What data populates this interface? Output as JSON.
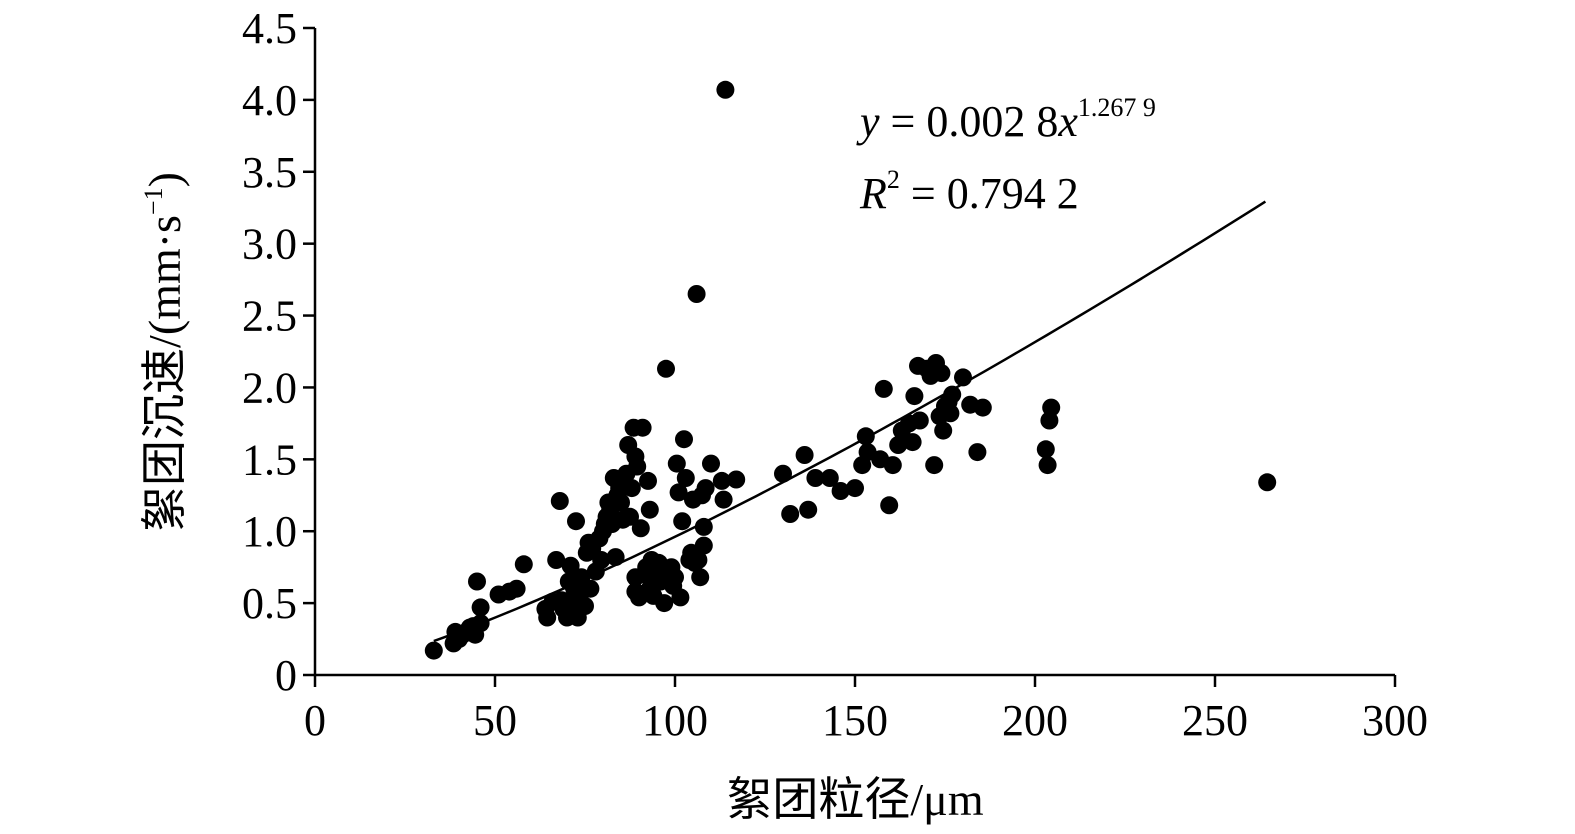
{
  "chart_data": {
    "type": "scatter",
    "xlabel": "絮团粒径/μm",
    "ylabel": "絮团沉速/(mm·s",
    "ylabel_unit_exp": "−1",
    "ylabel_close": ")",
    "xlim": [
      0,
      300
    ],
    "ylim": [
      0,
      4.5
    ],
    "x_ticks": [
      "0",
      "50",
      "100",
      "150",
      "200",
      "250",
      "300"
    ],
    "y_ticks": [
      "0",
      "0.5",
      "1.0",
      "1.5",
      "2.0",
      "2.5",
      "3.0",
      "3.5",
      "4.0",
      "4.5"
    ],
    "grid": false,
    "legend": "none",
    "marker_color": "#000000",
    "fit_color": "#000000",
    "equation": {
      "y_var": "y",
      "eq_text": " = 0.002 8",
      "x_var": "x",
      "exponent": "1.267 9",
      "r_var": "R",
      "r_sup": "2",
      "r_text": " = 0.794 2"
    },
    "fit": {
      "type": "power",
      "coefficient": 0.0028,
      "exponent": 1.2679,
      "x_range": [
        33,
        264
      ]
    },
    "points": [
      [
        33,
        0.17
      ],
      [
        38.5,
        0.22
      ],
      [
        39,
        0.3
      ],
      [
        40,
        0.25
      ],
      [
        41,
        0.28
      ],
      [
        42,
        0.3
      ],
      [
        43,
        0.33
      ],
      [
        44,
        0.34
      ],
      [
        44.5,
        0.28
      ],
      [
        45,
        0.65
      ],
      [
        46,
        0.36
      ],
      [
        46,
        0.47
      ],
      [
        51,
        0.56
      ],
      [
        54,
        0.58
      ],
      [
        56,
        0.6
      ],
      [
        58,
        0.77
      ],
      [
        64,
        0.46
      ],
      [
        64.5,
        0.4
      ],
      [
        66,
        0.51
      ],
      [
        67,
        0.8
      ],
      [
        68,
        1.21
      ],
      [
        68.5,
        0.52
      ],
      [
        69,
        0.46
      ],
      [
        70,
        0.4
      ],
      [
        70.5,
        0.65
      ],
      [
        71,
        0.76
      ],
      [
        71.5,
        0.5
      ],
      [
        72,
        0.6
      ],
      [
        72.5,
        1.07
      ],
      [
        73,
        0.4
      ],
      [
        73.5,
        0.55
      ],
      [
        74,
        0.68
      ],
      [
        75,
        0.48
      ],
      [
        75.5,
        0.85
      ],
      [
        76,
        0.92
      ],
      [
        76.5,
        0.6
      ],
      [
        77,
        0.88
      ],
      [
        78,
        0.72
      ],
      [
        79,
        0.95
      ],
      [
        79.5,
        0.8
      ],
      [
        80,
        1.0
      ],
      [
        80.5,
        1.05
      ],
      [
        81,
        1.1
      ],
      [
        81.5,
        1.2
      ],
      [
        82,
        1.15
      ],
      [
        82.5,
        1.05
      ],
      [
        83,
        1.37
      ],
      [
        83.5,
        0.82
      ],
      [
        84,
        1.25
      ],
      [
        84.5,
        1.3
      ],
      [
        85,
        1.2
      ],
      [
        85.5,
        1.08
      ],
      [
        86,
        1.35
      ],
      [
        86.5,
        1.4
      ],
      [
        87,
        1.6
      ],
      [
        87.5,
        1.1
      ],
      [
        88,
        1.3
      ],
      [
        88.5,
        1.72
      ],
      [
        89,
        1.52
      ],
      [
        89.5,
        1.45
      ],
      [
        89,
        0.68
      ],
      [
        89,
        0.58
      ],
      [
        90,
        0.54
      ],
      [
        90.5,
        1.02
      ],
      [
        91,
        1.72
      ],
      [
        91.5,
        0.7
      ],
      [
        92,
        0.75
      ],
      [
        92.5,
        1.35
      ],
      [
        93,
        0.6
      ],
      [
        93.5,
        0.8
      ],
      [
        93,
        1.15
      ],
      [
        94,
        0.55
      ],
      [
        95,
        0.7
      ],
      [
        95.5,
        0.78
      ],
      [
        96,
        0.65
      ],
      [
        96.5,
        0.72
      ],
      [
        97,
        0.5
      ],
      [
        97.5,
        2.13
      ],
      [
        98,
        0.7
      ],
      [
        99,
        0.75
      ],
      [
        99.5,
        0.62
      ],
      [
        100,
        0.68
      ],
      [
        100.5,
        1.47
      ],
      [
        101,
        1.27
      ],
      [
        101.5,
        0.54
      ],
      [
        102,
        1.07
      ],
      [
        102.5,
        1.64
      ],
      [
        103,
        1.37
      ],
      [
        104,
        0.8
      ],
      [
        104.5,
        0.85
      ],
      [
        105,
        1.22
      ],
      [
        105.5,
        0.78
      ],
      [
        106,
        2.65
      ],
      [
        106.5,
        0.8
      ],
      [
        107,
        0.68
      ],
      [
        107.5,
        1.25
      ],
      [
        108,
        0.9
      ],
      [
        108.5,
        1.3
      ],
      [
        108,
        1.03
      ],
      [
        110,
        1.47
      ],
      [
        113,
        1.35
      ],
      [
        113.5,
        1.22
      ],
      [
        114,
        4.07
      ],
      [
        117,
        1.36
      ],
      [
        130,
        1.4
      ],
      [
        132,
        1.12
      ],
      [
        136,
        1.53
      ],
      [
        137,
        1.15
      ],
      [
        139,
        1.37
      ],
      [
        143,
        1.37
      ],
      [
        146,
        1.28
      ],
      [
        150,
        1.3
      ],
      [
        152,
        1.46
      ],
      [
        153,
        1.66
      ],
      [
        153.5,
        1.55
      ],
      [
        157,
        1.5
      ],
      [
        158,
        1.99
      ],
      [
        159.5,
        1.18
      ],
      [
        160.5,
        1.46
      ],
      [
        162,
        1.6
      ],
      [
        163,
        1.7
      ],
      [
        165,
        1.75
      ],
      [
        166,
        1.62
      ],
      [
        166.5,
        1.94
      ],
      [
        167.5,
        2.15
      ],
      [
        168,
        1.77
      ],
      [
        170,
        2.13
      ],
      [
        171,
        2.08
      ],
      [
        172,
        1.46
      ],
      [
        172.5,
        2.17
      ],
      [
        173.5,
        1.8
      ],
      [
        174,
        2.1
      ],
      [
        174.5,
        1.7
      ],
      [
        175,
        1.87
      ],
      [
        176,
        1.9
      ],
      [
        176.5,
        1.82
      ],
      [
        177,
        1.95
      ],
      [
        180,
        2.07
      ],
      [
        182,
        1.88
      ],
      [
        184,
        1.55
      ],
      [
        185.5,
        1.86
      ],
      [
        203,
        1.57
      ],
      [
        203.5,
        1.46
      ],
      [
        204,
        1.77
      ],
      [
        204.5,
        1.86
      ],
      [
        264.5,
        1.34
      ]
    ]
  }
}
